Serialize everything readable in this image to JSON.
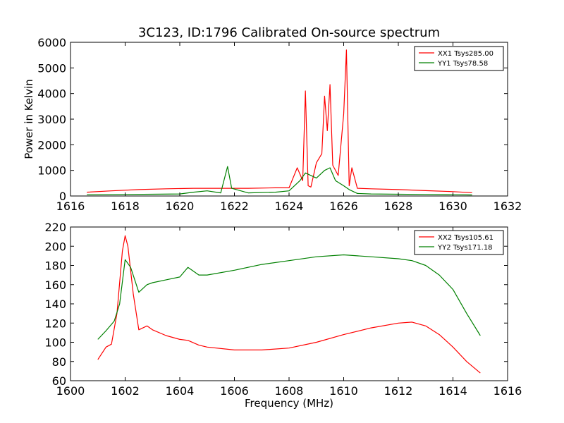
{
  "title": "3C123, ID:1796 Calibrated On-source spectrum",
  "colors": {
    "red": "#ff0000",
    "green": "#008000"
  },
  "chart_data": [
    {
      "type": "line",
      "title": "3C123, ID:1796 Calibrated On-source spectrum",
      "xlabel": "",
      "ylabel": "Power in Kelvin",
      "xlim": [
        1616,
        1632
      ],
      "ylim": [
        0,
        6000
      ],
      "xticks": [
        1616,
        1618,
        1620,
        1622,
        1624,
        1626,
        1628,
        1630,
        1632
      ],
      "yticks": [
        0,
        1000,
        2000,
        3000,
        4000,
        5000,
        6000
      ],
      "legend_position": "top-right",
      "grid": false,
      "series": [
        {
          "name": "XX1 Tsys285.00",
          "color": "#ff0000",
          "x": [
            1616.6,
            1617.5,
            1618.5,
            1619.5,
            1620.5,
            1621.5,
            1622.5,
            1623.5,
            1624.0,
            1624.3,
            1624.5,
            1624.6,
            1624.7,
            1624.8,
            1625.0,
            1625.2,
            1625.3,
            1625.4,
            1625.5,
            1625.6,
            1625.8,
            1626.0,
            1626.1,
            1626.2,
            1626.3,
            1626.5,
            1627.0,
            1628.0,
            1629.0,
            1630.0,
            1630.7
          ],
          "y": [
            150,
            200,
            250,
            280,
            300,
            300,
            300,
            320,
            320,
            1100,
            600,
            4100,
            400,
            350,
            1300,
            1650,
            3900,
            2550,
            4350,
            1200,
            800,
            3200,
            5700,
            400,
            1100,
            300,
            280,
            250,
            210,
            170,
            130
          ]
        },
        {
          "name": "YY1 Tsys78.58",
          "color": "#008000",
          "x": [
            1616.6,
            1618.0,
            1619.0,
            1620.0,
            1620.5,
            1621.0,
            1621.5,
            1621.75,
            1621.9,
            1622.5,
            1623.5,
            1624.0,
            1624.4,
            1624.6,
            1625.0,
            1625.3,
            1625.5,
            1625.7,
            1626.0,
            1626.2,
            1626.5,
            1627.0,
            1628.0,
            1629.0,
            1630.0,
            1630.7
          ],
          "y": [
            50,
            60,
            70,
            80,
            150,
            200,
            120,
            1150,
            300,
            120,
            150,
            200,
            600,
            900,
            700,
            1000,
            1100,
            600,
            400,
            250,
            100,
            80,
            70,
            60,
            50,
            40
          ]
        }
      ]
    },
    {
      "type": "line",
      "title": "",
      "xlabel": "Frequency (MHz)",
      "ylabel": "",
      "xlim": [
        1600,
        1616
      ],
      "ylim": [
        60,
        220
      ],
      "xticks": [
        1600,
        1602,
        1604,
        1606,
        1608,
        1610,
        1612,
        1614,
        1616
      ],
      "yticks": [
        60,
        80,
        100,
        120,
        140,
        160,
        180,
        200,
        220
      ],
      "legend_position": "top-right",
      "grid": false,
      "series": [
        {
          "name": "XX2 Tsys105.61",
          "color": "#ff0000",
          "x": [
            1601.0,
            1601.3,
            1601.5,
            1601.7,
            1601.9,
            1602.0,
            1602.1,
            1602.3,
            1602.5,
            1602.8,
            1603.0,
            1603.5,
            1604.0,
            1604.3,
            1604.7,
            1605.0,
            1606.0,
            1607.0,
            1608.0,
            1609.0,
            1610.0,
            1611.0,
            1612.0,
            1612.5,
            1613.0,
            1613.5,
            1614.0,
            1614.5,
            1615.0
          ],
          "y": [
            82,
            95,
            98,
            130,
            195,
            211,
            200,
            150,
            113,
            117,
            113,
            107,
            103,
            102,
            97,
            95,
            92,
            92,
            94,
            100,
            108,
            115,
            120,
            121,
            117,
            108,
            95,
            80,
            68
          ]
        },
        {
          "name": "YY2 Tsys171.18",
          "color": "#008000",
          "x": [
            1601.0,
            1601.3,
            1601.6,
            1601.8,
            1602.0,
            1602.2,
            1602.5,
            1602.8,
            1603.0,
            1603.5,
            1604.0,
            1604.3,
            1604.7,
            1605.0,
            1606.0,
            1607.0,
            1608.0,
            1609.0,
            1610.0,
            1611.0,
            1612.0,
            1612.5,
            1613.0,
            1613.5,
            1614.0,
            1614.5,
            1615.0
          ],
          "y": [
            103,
            112,
            122,
            140,
            186,
            178,
            152,
            160,
            162,
            165,
            168,
            178,
            170,
            170,
            175,
            181,
            185,
            189,
            191,
            189,
            187,
            185,
            180,
            170,
            155,
            130,
            107
          ]
        }
      ]
    }
  ]
}
